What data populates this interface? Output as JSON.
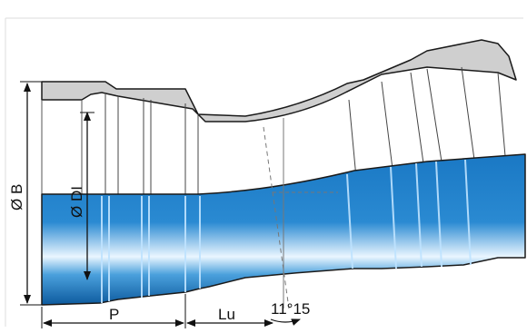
{
  "labels": {
    "outer_diameter": "Ø B",
    "inner_diameter": "Ø DI",
    "socket_depth": "P",
    "useful_length": "Lu",
    "bend_angle": "11°15"
  },
  "colors": {
    "pipe_blue": "#1a78c4",
    "pipe_blue_dark": "#0d5a9e",
    "highlight": "#eaf6ff",
    "wall_gray": "#cfcfcf",
    "outline": "#1a1a1a"
  }
}
